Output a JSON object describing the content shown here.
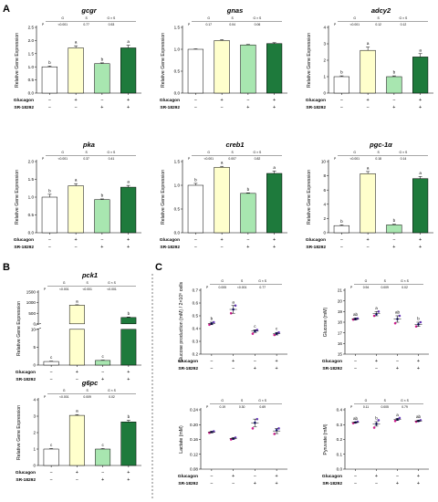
{
  "panel_labels": [
    "A",
    "B",
    "C"
  ],
  "row_labels": [
    "Glucagon",
    "SR-18292"
  ],
  "stat_headers": [
    "G",
    "S",
    "G × S"
  ],
  "colors": {
    "control": "#ffffff",
    "glucagon": "#ffffcc",
    "sr18292": "#a8e6b0",
    "both": "#1e7a3c",
    "dot_a": "#d02090",
    "dot_b": "#2020b0",
    "dot_c": "#7040c0"
  },
  "chart_data": [
    {
      "title": "gcgr",
      "type": "bar",
      "ylabel": "Relative Gene Expression",
      "ylim": [
        0,
        2.5
      ],
      "yticks": [
        "0.0",
        "0.5",
        "1.0",
        "1.5",
        "2.0",
        "2.5"
      ],
      "values": [
        1.0,
        1.72,
        1.12,
        1.72
      ],
      "errors": [
        0.03,
        0.08,
        0.03,
        0.1
      ],
      "letters": [
        "b",
        "a",
        "b",
        "a"
      ],
      "stats": [
        "<0.001",
        "0.77",
        "0.53"
      ],
      "glucagon": [
        "−",
        "+",
        "−",
        "+"
      ],
      "sr18292": [
        "−",
        "−",
        "+",
        "+"
      ]
    },
    {
      "title": "gnas",
      "type": "bar",
      "ylabel": "Relative Gene Expression",
      "ylim": [
        0,
        1.5
      ],
      "yticks": [
        "0.0",
        "0.5",
        "1.0",
        "1.5"
      ],
      "values": [
        1.0,
        1.2,
        1.1,
        1.13
      ],
      "errors": [
        0.01,
        0.02,
        0.01,
        0.02
      ],
      "letters": [
        "",
        "",
        "",
        ""
      ],
      "stats": [
        "0.17",
        "0.04",
        "0.06"
      ],
      "glucagon": [
        "−",
        "+",
        "−",
        "+"
      ],
      "sr18292": [
        "−",
        "−",
        "+",
        "+"
      ]
    },
    {
      "title": "adcy2",
      "type": "bar",
      "ylabel": "Relative Gene Expression",
      "ylim": [
        0,
        4
      ],
      "yticks": [
        "0",
        "1",
        "2",
        "3",
        "4"
      ],
      "values": [
        1.0,
        2.6,
        1.0,
        2.2
      ],
      "errors": [
        0.05,
        0.2,
        0.05,
        0.2
      ],
      "letters": [
        "b",
        "a",
        "b",
        "a"
      ],
      "stats": [
        "<0.001",
        "0.12",
        "0.12"
      ],
      "glucagon": [
        "−",
        "+",
        "−",
        "+"
      ],
      "sr18292": [
        "−",
        "−",
        "+",
        "+"
      ]
    },
    {
      "title": "pka",
      "type": "bar",
      "ylabel": "Relative Gene Expression",
      "ylim": [
        0,
        2.0
      ],
      "yticks": [
        "0.0",
        "0.5",
        "1.0",
        "1.5",
        "2.0"
      ],
      "values": [
        1.0,
        1.32,
        0.93,
        1.28
      ],
      "errors": [
        0.08,
        0.06,
        0.02,
        0.05
      ],
      "letters": [
        "b",
        "a",
        "b",
        "a"
      ],
      "stats": [
        "<0.001",
        "0.37",
        "0.41"
      ],
      "glucagon": [
        "−",
        "+",
        "−",
        "+"
      ],
      "sr18292": [
        "−",
        "−",
        "+",
        "+"
      ]
    },
    {
      "title": "creb1",
      "type": "bar",
      "ylabel": "Relative Gene Expression",
      "ylim": [
        0,
        1.5
      ],
      "yticks": [
        "0.0",
        "0.5",
        "1.0",
        "1.5"
      ],
      "values": [
        1.0,
        1.38,
        0.83,
        1.25
      ],
      "errors": [
        0.04,
        0.02,
        0.01,
        0.05
      ],
      "letters": [
        "b",
        "a",
        "b",
        "a"
      ],
      "stats": [
        "<0.001",
        "0.007",
        "0.82"
      ],
      "glucagon": [
        "−",
        "+",
        "−",
        "+"
      ],
      "sr18292": [
        "−",
        "−",
        "+",
        "+"
      ]
    },
    {
      "title": "pgc-1α",
      "type": "bar",
      "ylabel": "Relative Gene Expression",
      "ylim": [
        0,
        10
      ],
      "yticks": [
        "0",
        "2",
        "4",
        "6",
        "8",
        "10"
      ],
      "values": [
        1.0,
        8.3,
        1.1,
        7.6
      ],
      "errors": [
        0.1,
        0.3,
        0.1,
        0.3
      ],
      "letters": [
        "b",
        "a",
        "b",
        "a"
      ],
      "stats": [
        "<0.001",
        "0.18",
        "0.14"
      ],
      "glucagon": [
        "−",
        "+",
        "−",
        "+"
      ],
      "sr18292": [
        "−",
        "−",
        "+",
        "+"
      ]
    },
    {
      "title": "pck1",
      "type": "bar",
      "broken_axis": true,
      "ylabel": "Relative Gene Expression",
      "ylim_top": [
        0,
        1500
      ],
      "yticks_top": [
        "0",
        "500",
        "1000",
        "1500"
      ],
      "ylim_bottom": [
        0,
        10
      ],
      "yticks_bottom": [
        "0",
        "5",
        "10"
      ],
      "values": [
        1.0,
        880,
        1.3,
        300
      ],
      "errors": [
        0.1,
        20,
        0.1,
        20
      ],
      "letters": [
        "c",
        "a",
        "c",
        "b"
      ],
      "stats": [
        "<0.001",
        "<0.001",
        "<0.001"
      ],
      "glucagon": [
        "−",
        "+",
        "−",
        "+"
      ],
      "sr18292": [
        "−",
        "−",
        "+",
        "+"
      ]
    },
    {
      "title": "g6pc",
      "type": "bar",
      "ylabel": "Relative Gene Expression",
      "ylim": [
        0,
        4
      ],
      "yticks": [
        "0",
        "1",
        "2",
        "3",
        "4"
      ],
      "values": [
        1.0,
        3.05,
        1.0,
        2.65
      ],
      "errors": [
        0.03,
        0.05,
        0.03,
        0.1
      ],
      "letters": [
        "c",
        "a",
        "c",
        "b"
      ],
      "stats": [
        "<0.001",
        "0.009",
        "0.02"
      ],
      "glucagon": [
        "−",
        "+",
        "−",
        "+"
      ],
      "sr18292": [
        "−",
        "−",
        "+",
        "+"
      ]
    },
    {
      "title": "",
      "type": "scatter",
      "ylabel": "Glucose production (mM) / 2×10⁶ cells",
      "ylim": [
        0.2,
        0.7
      ],
      "yticks": [
        "0.2",
        "0.3",
        "0.4",
        "0.5",
        "0.6",
        "0.7"
      ],
      "groups": [
        [
          0.43,
          0.44,
          0.45
        ],
        [
          0.52,
          0.55,
          0.58
        ],
        [
          0.36,
          0.38,
          0.39
        ],
        [
          0.35,
          0.36,
          0.37
        ]
      ],
      "means": [
        0.44,
        0.55,
        0.38,
        0.36
      ],
      "errors": [
        0.01,
        0.03,
        0.01,
        0.01
      ],
      "letters": [
        "b",
        "a",
        "c",
        "c"
      ],
      "stats": [
        "0.005",
        "<0.001",
        "0.77"
      ],
      "glucagon": [
        "−",
        "+",
        "−",
        "+"
      ],
      "sr18292": [
        "−",
        "−",
        "+",
        "+"
      ]
    },
    {
      "title": "",
      "type": "scatter",
      "ylabel": "Glucose (mM)",
      "ylim": [
        15,
        21
      ],
      "yticks": [
        "15",
        "16",
        "17",
        "18",
        "19",
        "20",
        "21"
      ],
      "groups": [
        [
          18.25,
          18.3,
          18.35
        ],
        [
          18.6,
          18.75,
          19.0
        ],
        [
          17.9,
          18.3,
          18.6
        ],
        [
          17.6,
          17.8,
          18.0
        ]
      ],
      "means": [
        18.3,
        18.8,
        18.3,
        17.8
      ],
      "errors": [
        0.1,
        0.2,
        0.3,
        0.2
      ],
      "letters": [
        "ab",
        "a",
        "ab",
        "b"
      ],
      "stats": [
        "0.94",
        "0.009",
        "0.02"
      ],
      "glucagon": [
        "−",
        "+",
        "−",
        "+"
      ],
      "sr18292": [
        "−",
        "−",
        "+",
        "+"
      ]
    },
    {
      "title": "",
      "type": "scatter",
      "ylabel": "Lactate (mM)",
      "ylim": [
        0.08,
        0.24
      ],
      "yticks": [
        "0.08",
        "0.12",
        "0.16",
        "0.20",
        "0.24"
      ],
      "groups": [
        [
          0.178,
          0.18,
          0.182
        ],
        [
          0.16,
          0.162,
          0.165
        ],
        [
          0.19,
          0.205,
          0.215
        ],
        [
          0.175,
          0.185,
          0.19
        ]
      ],
      "means": [
        0.18,
        0.163,
        0.205,
        0.183
      ],
      "errors": [
        0.002,
        0.002,
        0.01,
        0.007
      ],
      "letters": [
        "",
        "",
        "",
        ""
      ],
      "stats": [
        "0.19",
        "0.30",
        "0.69"
      ],
      "glucagon": [
        "−",
        "+",
        "−",
        "+"
      ],
      "sr18292": [
        "−",
        "−",
        "+",
        "+"
      ]
    },
    {
      "title": "",
      "type": "scatter",
      "ylabel": "Pyruvate (mM)",
      "ylim": [
        0.0,
        0.4
      ],
      "yticks": [
        "0.0",
        "0.1",
        "0.2",
        "0.3",
        "0.4"
      ],
      "groups": [
        [
          0.31,
          0.315,
          0.32
        ],
        [
          0.28,
          0.305,
          0.33
        ],
        [
          0.325,
          0.335,
          0.345
        ],
        [
          0.32,
          0.325,
          0.33
        ]
      ],
      "means": [
        0.315,
        0.305,
        0.335,
        0.325
      ],
      "errors": [
        0.003,
        0.015,
        0.007,
        0.004
      ],
      "letters": [
        "ab",
        "b",
        "a",
        "ab"
      ],
      "stats": [
        "0.11",
        "0.005",
        "0.79"
      ],
      "glucagon": [
        "−",
        "+",
        "−",
        "+"
      ],
      "sr18292": [
        "−",
        "−",
        "+",
        "+"
      ]
    }
  ]
}
